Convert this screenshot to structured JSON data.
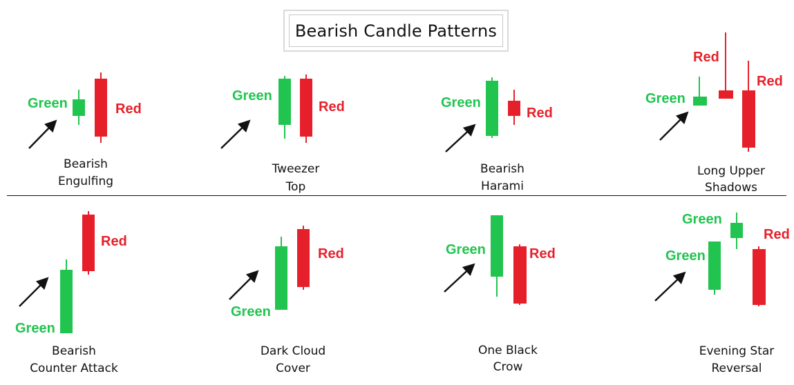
{
  "title": "Bearish Candle Patterns",
  "colors": {
    "green": "#21c44f",
    "red": "#e6202a",
    "arrow": "#111111",
    "text": "#111111"
  },
  "patterns": [
    {
      "caption_line1": "Bearish",
      "caption_line2": "Engulfing",
      "labels": [
        {
          "text": "Green",
          "color": "green"
        },
        {
          "text": "Red",
          "color": "red"
        }
      ]
    },
    {
      "caption_line1": "Tweezer",
      "caption_line2": "Top",
      "labels": [
        {
          "text": "Green",
          "color": "green"
        },
        {
          "text": "Red",
          "color": "red"
        }
      ]
    },
    {
      "caption_line1": "Bearish",
      "caption_line2": "Harami",
      "labels": [
        {
          "text": "Green",
          "color": "green"
        },
        {
          "text": "Red",
          "color": "red"
        }
      ]
    },
    {
      "caption_line1": "Long Upper",
      "caption_line2": "Shadows",
      "labels": [
        {
          "text": "Green",
          "color": "green"
        },
        {
          "text": "Red",
          "color": "red"
        },
        {
          "text": "Red",
          "color": "red"
        }
      ]
    },
    {
      "caption_line1": "Bearish",
      "caption_line2": "Counter Attack",
      "labels": [
        {
          "text": "Green",
          "color": "green"
        },
        {
          "text": "Red",
          "color": "red"
        }
      ]
    },
    {
      "caption_line1": "Dark Cloud",
      "caption_line2": "Cover",
      "labels": [
        {
          "text": "Green",
          "color": "green"
        },
        {
          "text": "Red",
          "color": "red"
        }
      ]
    },
    {
      "caption_line1": "One Black",
      "caption_line2": "Crow",
      "labels": [
        {
          "text": "Green",
          "color": "green"
        },
        {
          "text": "Red",
          "color": "red"
        }
      ]
    },
    {
      "caption_line1": "Evening Star",
      "caption_line2": "Reversal",
      "labels": [
        {
          "text": "Green",
          "color": "green"
        },
        {
          "text": "Green",
          "color": "green"
        },
        {
          "text": "Red",
          "color": "red"
        }
      ]
    }
  ]
}
